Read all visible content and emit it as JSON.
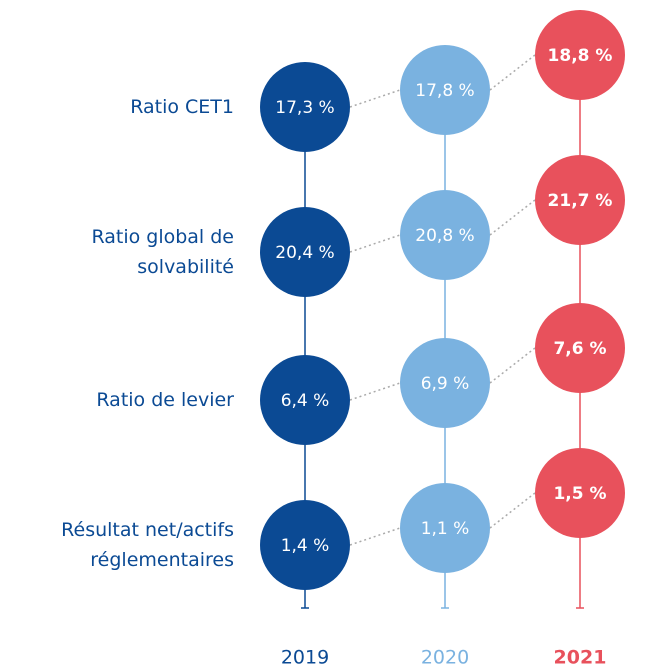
{
  "chart_data": {
    "type": "dot",
    "categories": [
      "Ratio CET1",
      "Ratio global de\nsolvabilité",
      "Ratio de levier",
      "Résultat net/actifs\nréglementaires"
    ],
    "series": [
      {
        "name": "2019",
        "color": "#0b4a94",
        "values": [
          17.3,
          20.4,
          6.4,
          1.4
        ],
        "value_labels": [
          "17,3 %",
          "20,4 %",
          "6,4 %",
          "1,4 %"
        ]
      },
      {
        "name": "2020",
        "color": "#7ab2e0",
        "values": [
          17.8,
          20.8,
          6.9,
          1.1
        ],
        "value_labels": [
          "17,8 %",
          "20,8 %",
          "6,9 %",
          "1,1 %"
        ]
      },
      {
        "name": "2021",
        "color": "#e8515c",
        "values": [
          18.8,
          21.7,
          7.6,
          1.5
        ],
        "value_labels": [
          "18,8 %",
          "21,7 %",
          "7,6 %",
          "1,5 %"
        ]
      }
    ]
  }
}
